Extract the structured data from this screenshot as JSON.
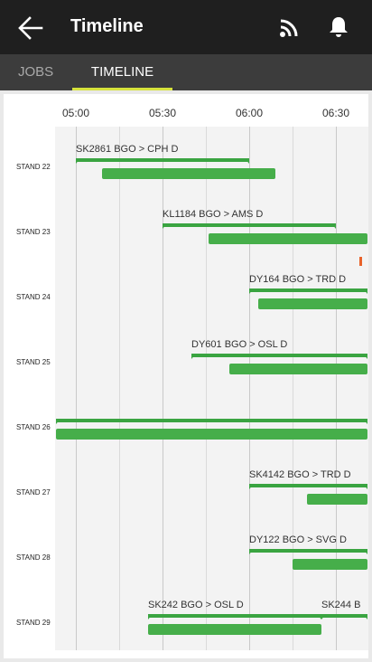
{
  "appbar": {
    "title": "Timeline",
    "back_icon": "arrow-left-icon",
    "rss_icon": "rss-feed-icon",
    "bell_icon": "notification-bell-icon"
  },
  "tabs": [
    {
      "label": "JOBS",
      "active": false
    },
    {
      "label": "TIMELINE",
      "active": true
    }
  ],
  "colors": {
    "appbar_bg": "#1f1f1f",
    "tabs_bg": "#3c3c3c",
    "tab_indicator": "#d6e23c",
    "bar_green": "#46ae4a",
    "marker_orange": "#e8622a"
  },
  "timeline": {
    "ticks": [
      "05:00",
      "05:30",
      "06:00",
      "06:30"
    ],
    "stands": [
      {
        "label": "STAND 22",
        "flights": [
          {
            "label": "SK2861 BGO > CPH D",
            "sched_start": "05:00",
            "sched_end": "06:00",
            "actual_start": "05:09",
            "actual_end": "06:09"
          }
        ]
      },
      {
        "label": "STAND 23",
        "flights": [
          {
            "label": "KL1184 BGO > AMS D",
            "sched_start": "05:30",
            "sched_end": "06:30",
            "actual_start": "05:46",
            "actual_end": "06:41"
          }
        ],
        "marker_time": "06:38"
      },
      {
        "label": "STAND 24",
        "flights": [
          {
            "label": "DY164 BGO > TRD D",
            "sched_start": "06:00",
            "sched_end": "06:41",
            "actual_start": "06:03",
            "actual_end": "06:41"
          }
        ]
      },
      {
        "label": "STAND 25",
        "flights": [
          {
            "label": "DY601 BGO > OSL D",
            "sched_start": "05:40",
            "sched_end": "06:41",
            "actual_start": "05:53",
            "actual_end": "06:41"
          }
        ]
      },
      {
        "label": "STAND 26",
        "flights": [
          {
            "label": "",
            "sched_start": "04:53",
            "sched_end": "06:41",
            "actual_start": "04:53",
            "actual_end": "06:41"
          }
        ]
      },
      {
        "label": "STAND 27",
        "flights": [
          {
            "label": "SK4142 BGO > TRD D",
            "sched_start": "06:00",
            "sched_end": "06:41",
            "actual_start": "06:20",
            "actual_end": "06:41"
          }
        ]
      },
      {
        "label": "STAND 28",
        "flights": [
          {
            "label": "DY122 BGO > SVG D",
            "sched_start": "06:00",
            "sched_end": "06:41",
            "actual_start": "06:15",
            "actual_end": "06:41"
          }
        ]
      },
      {
        "label": "STAND 29",
        "flights": [
          {
            "label": "SK242 BGO > OSL D",
            "sched_start": "05:25",
            "sched_end": "06:25",
            "actual_start": "05:25",
            "actual_end": "06:25"
          },
          {
            "label": "SK244 B",
            "sched_start": "06:25",
            "sched_end": "06:41",
            "actual_start": "",
            "actual_end": ""
          }
        ]
      }
    ]
  }
}
